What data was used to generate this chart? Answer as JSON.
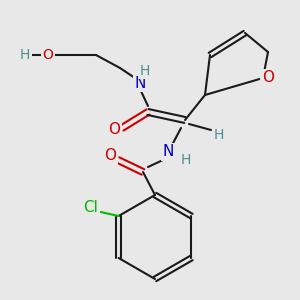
{
  "bg_color": "#e8e8e8",
  "line_color": "#1a1a1a",
  "colors": {
    "O": "#cc0000",
    "N": "#0000cc",
    "Cl": "#00bb00",
    "H": "#4a9090",
    "C": "#1a1a1a"
  },
  "figsize": [
    3.0,
    3.0
  ],
  "dpi": 100
}
